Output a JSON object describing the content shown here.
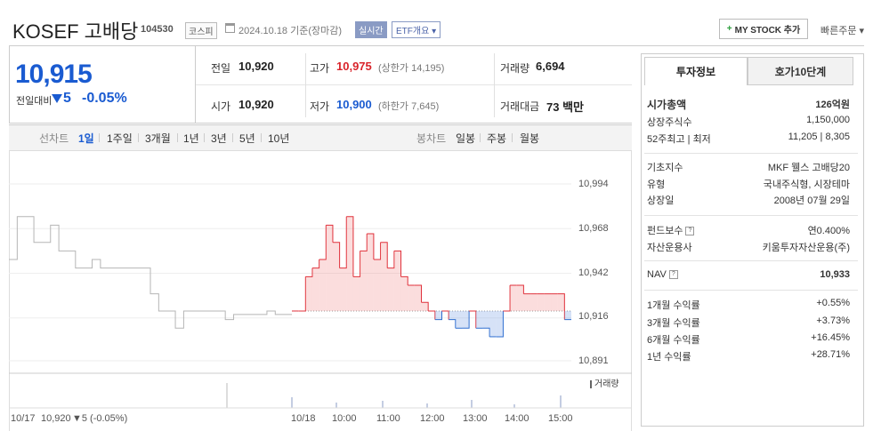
{
  "header": {
    "title": "KOSEF 고배당",
    "code": "104530",
    "market": "코스피",
    "date": "2024.10.18 기준(장마감)",
    "realtime": "실시간",
    "etf_overview": "ETF개요",
    "mystock": "MY STOCK 추가",
    "quick_order": "빠른주문"
  },
  "quote": {
    "price": "10,915",
    "diff_label": "전일대비",
    "diff": "5",
    "diff_pct": "-0.05%",
    "prev_close_label": "전일",
    "prev_close": "10,920",
    "open_label": "시가",
    "open": "10,920",
    "high_label": "고가",
    "high": "10,975",
    "upper_limit": "(상한가 14,195)",
    "low_label": "저가",
    "low": "10,900",
    "lower_limit": "(하한가 7,645)",
    "volume_label": "거래량",
    "volume": "6,694",
    "amount_label": "거래대금",
    "amount": "73 백만"
  },
  "toolbar": {
    "line_label": "선차트",
    "periods": [
      "1일",
      "1주일",
      "3개월",
      "1년",
      "3년",
      "5년",
      "10년"
    ],
    "candle_label": "봉차트",
    "candles": [
      "일봉",
      "주봉",
      "월봉"
    ]
  },
  "chart": {
    "volume_label": "거래량",
    "footer_prev": "10/17",
    "footer_prev_price": "10,920",
    "footer_prev_change": "▼5 (-0.05%)",
    "time_labels": [
      "10/18",
      "10:00",
      "11:00",
      "12:00",
      "13:00",
      "14:00",
      "15:00"
    ]
  },
  "chart_data": {
    "type": "line",
    "y_ticks": [
      "10,994",
      "10,968",
      "10,942",
      "10,916",
      "10,891"
    ],
    "baseline": 10920,
    "prev_day_series": [
      10950,
      10975,
      10975,
      10960,
      10960,
      10970,
      10955,
      10955,
      10945,
      10945,
      10950,
      10945,
      10945,
      10945,
      10945,
      10945,
      10945,
      10930,
      10920,
      10920,
      10910,
      10920,
      10920,
      10920,
      10920,
      10920,
      10915,
      10918,
      10918,
      10918,
      10918,
      10920,
      10918,
      10918,
      10918
    ],
    "today_series": [
      10920,
      10920,
      10940,
      10945,
      10950,
      10970,
      10960,
      10945,
      10975,
      10940,
      10955,
      10965,
      10950,
      10960,
      10945,
      10955,
      10940,
      10935,
      10935,
      10925,
      10920,
      10915,
      10920,
      10915,
      10910,
      10910,
      10920,
      10910,
      10910,
      10905,
      10905,
      10920,
      10935,
      10935,
      10930,
      10930,
      10930,
      10930,
      10930,
      10930,
      10915,
      10915
    ]
  },
  "side": {
    "tab_info": "투자정보",
    "tab_orderbook": "호가10단계",
    "market_cap_label": "시가총액",
    "market_cap": "126억원",
    "shares_label": "상장주식수",
    "shares": "1,150,000",
    "w52_label": "52주최고 | 최저",
    "w52": "11,205 | 8,305",
    "index_label": "기초지수",
    "index": "MKF 웰스 고배당20",
    "type_label": "유형",
    "type": "국내주식형, 시장테마",
    "listed_label": "상장일",
    "listed": "2008년 07월 29일",
    "fee_label": "펀드보수",
    "fee": "연0.400%",
    "manager_label": "자산운용사",
    "manager": "키움투자자산운용(주)",
    "nav_label": "NAV",
    "nav": "10,933",
    "r1m_label": "1개월 수익률",
    "r1m": "+0.55%",
    "r3m_label": "3개월 수익률",
    "r3m": "+3.73%",
    "r6m_label": "6개월 수익률",
    "r6m": "+16.45%",
    "r1y_label": "1년 수익률",
    "r1y": "+28.71%"
  }
}
